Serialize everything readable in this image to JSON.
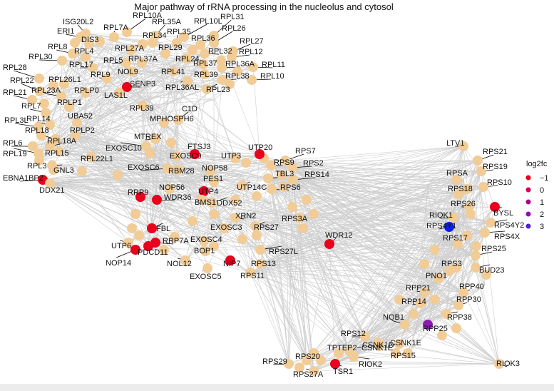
{
  "title": "Major pathway of rRNA processing in the nucleolus and cytosol",
  "legend": {
    "title": "log2fc",
    "entries": [
      {
        "label": "−1",
        "color": "#e8001c"
      },
      {
        "label": "0",
        "color": "#d4005a"
      },
      {
        "label": "1",
        "color": "#b0008c"
      },
      {
        "label": "2",
        "color": "#9010b4"
      },
      {
        "label": "3",
        "color": "#5020d8"
      }
    ]
  },
  "colors": {
    "default_node": "#f2cc96",
    "edge": "#bdbdbd",
    "high": "#0a1ee6",
    "mid": "#8a1ab0",
    "low": "#e8001c"
  },
  "labels": [
    "ISG20L2",
    "RPL10A",
    "RPL35A",
    "RPL10L",
    "RPL31",
    "ERI1",
    "RPL7A",
    "RPL26",
    "DIS3",
    "RPL34",
    "RPL35",
    "RPL36",
    "RPL8",
    "RPL27",
    "RPL30",
    "RPL4",
    "RPL27A",
    "RPL29",
    "RPL32",
    "RPL12",
    "RPL5",
    "RPL37A",
    "RPL24",
    "RPL36A",
    "RPL11",
    "RPL17",
    "RPL37",
    "RPL28",
    "NOL9",
    "RPL9",
    "RPL41",
    "RPL39",
    "RPL38",
    "RPL10",
    "RPL22",
    "RPL26L1",
    "SENP3",
    "RPL36AL",
    "RPL23",
    "RPL23A",
    "RPLP0",
    "RPL21",
    "LAS1L",
    "RPLP1",
    "RPL39",
    "C1D",
    "RPL7",
    "UBA52",
    "MPHOSPH6",
    "RPL3L",
    "RPL14",
    "RPLP2",
    "MTREX",
    "RPL18",
    "RPL18A",
    "EXOSC10",
    "RPL6",
    "RPL15",
    "RPL19",
    "RPL22L1",
    "RPL3",
    "EBNA1BP2",
    "GNL3",
    "DDX21",
    "FTSJ3",
    "UTP20",
    "RPS7",
    "EXOSC9",
    "UTP3",
    "RPS9",
    "RPS2",
    "EXOSC6",
    "RBM28",
    "NOP58",
    "TBL3",
    "RPS14",
    "PES1",
    "UTP14C",
    "RPS6",
    "RRP9",
    "NOP56",
    "UTP4",
    "BMS1",
    "DDX52",
    "WDR36",
    "XRN2",
    "EXOSC3",
    "RPS27",
    "RPS3A",
    "FBL",
    "RRP7A",
    "EXOSC4",
    "UTP6",
    "PDCD11",
    "BOP1",
    "NOP14",
    "NOL12",
    "NIP7",
    "RPS27L",
    "RPS13",
    "RPS11",
    "EXOSC5",
    "WDR12",
    "LTV1",
    "RPS21",
    "RPS19",
    "RPSA",
    "RPS10",
    "RPS18",
    "RPS26",
    "RIOK1",
    "BYSL",
    "RPS4Y1",
    "RPS4Y2",
    "RPS4X",
    "RPS17",
    "RPS25",
    "RPS3",
    "BUD23",
    "PNO1",
    "RPP40",
    "RPP21",
    "RPP30",
    "RPP14",
    "RPP38",
    "NOB1",
    "RPP25",
    "RPS12",
    "CSNK1E",
    "CSNK1D",
    "RPS15",
    "TPTEP2−CSNK1E",
    "RPS29",
    "RPS20",
    "RIOK2",
    "RIOK3",
    "RPS27A",
    "TSR1"
  ]
}
